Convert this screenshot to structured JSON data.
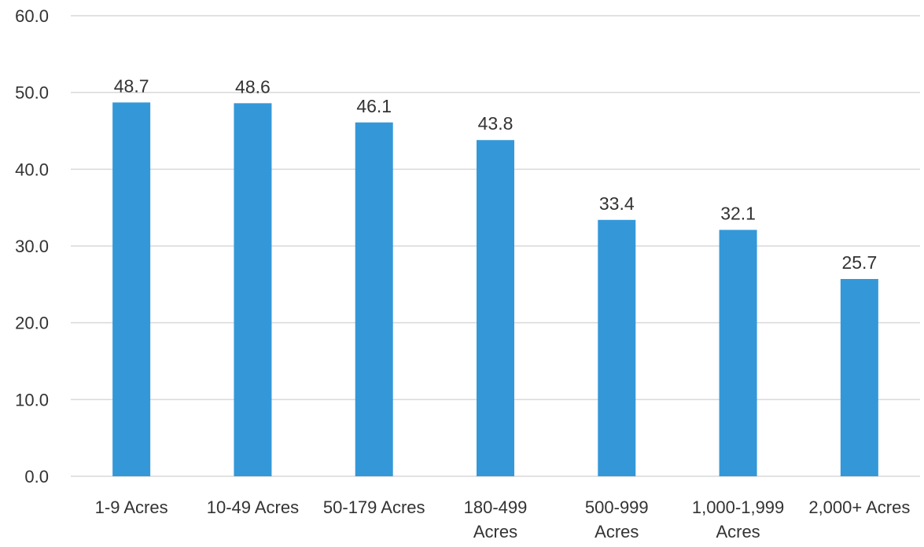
{
  "chart_data": {
    "type": "bar",
    "title": "",
    "xlabel": "",
    "ylabel": "",
    "categories": [
      [
        "1-9 Acres"
      ],
      [
        "10-49 Acres"
      ],
      [
        "50-179 Acres"
      ],
      [
        "180-499",
        "Acres"
      ],
      [
        "500-999",
        "Acres"
      ],
      [
        "1,000-1,999",
        "Acres"
      ],
      [
        "2,000+ Acres"
      ]
    ],
    "values": [
      48.7,
      48.6,
      46.1,
      43.8,
      33.4,
      32.1,
      25.7
    ],
    "data_labels": [
      "48.7",
      "48.6",
      "46.1",
      "43.8",
      "33.4",
      "32.1",
      "25.7"
    ],
    "ylim": [
      0,
      60
    ],
    "yticks": [
      0,
      10,
      20,
      30,
      40,
      50,
      60
    ],
    "ytick_labels": [
      "0.0",
      "10.0",
      "20.0",
      "30.0",
      "40.0",
      "50.0",
      "60.0"
    ],
    "grid": true,
    "legend": "none",
    "bar_color": "#3498d8"
  }
}
